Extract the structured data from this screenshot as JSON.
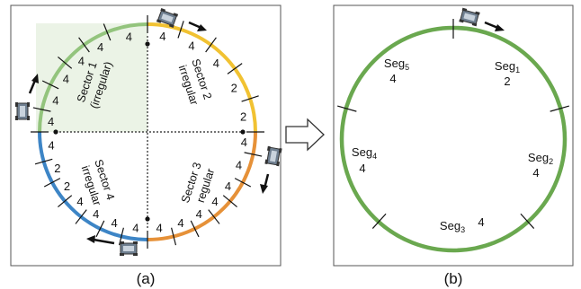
{
  "panel_a": {
    "caption": "(a)",
    "sectors": [
      {
        "line1": "Sector 1",
        "line2": "(irregular)"
      },
      {
        "line1": "Sector 2",
        "line2": "irregular"
      },
      {
        "line1": "Sector 3",
        "line2": "regular"
      },
      {
        "line1": "Sector 4",
        "line2": "irregular"
      }
    ],
    "segment_labels": [
      "4",
      "4",
      "4",
      "2",
      "2",
      "4",
      "4",
      "4",
      "4",
      "4",
      "4",
      "4",
      "4",
      "4",
      "4",
      "4",
      "2",
      "2",
      "4",
      "4",
      "4",
      "4",
      "4",
      "4",
      "4",
      "4"
    ],
    "colors": {
      "sector1": "#93c47d",
      "sector2": "#f1c232",
      "sector3": "#e69138",
      "sector4": "#3d85c6"
    }
  },
  "panel_b": {
    "caption": "(b)",
    "segments": [
      {
        "base": "Seg",
        "sub": "1",
        "value": "2"
      },
      {
        "base": "Seg",
        "sub": "2",
        "value": "4"
      },
      {
        "base": "Seg",
        "sub": "3",
        "value": "4"
      },
      {
        "base": "Seg",
        "sub": "4",
        "value": "4"
      },
      {
        "base": "Seg",
        "sub": "5",
        "value": "4"
      }
    ],
    "ring_color": "#6aa84f"
  },
  "icons": [
    "robot-icon",
    "direction-arrow-icon",
    "right-hollow-arrow-icon"
  ]
}
